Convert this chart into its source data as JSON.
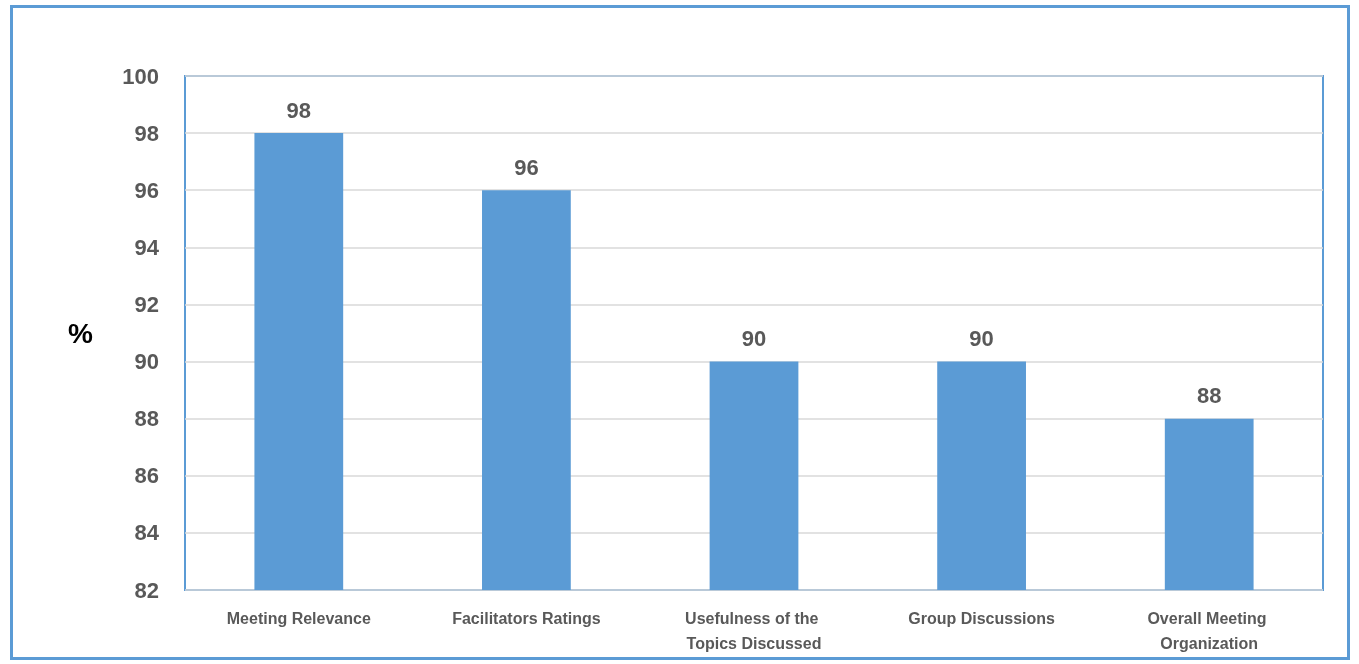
{
  "chart_data": {
    "type": "bar",
    "ylabel": "%",
    "categories": [
      "Meeting Relevance",
      "Facilitators Ratings",
      "Usefulness of the Topics Discussed",
      "Group Discussions",
      "Overall Meeting Organization"
    ],
    "values": [
      98,
      96,
      90,
      90,
      88
    ],
    "color": "#5b9bd5",
    "ylim": [
      82,
      100
    ],
    "yticks": [
      82,
      84,
      86,
      88,
      90,
      92,
      94,
      96,
      98,
      100
    ],
    "grid": "y",
    "data_labels": true
  }
}
